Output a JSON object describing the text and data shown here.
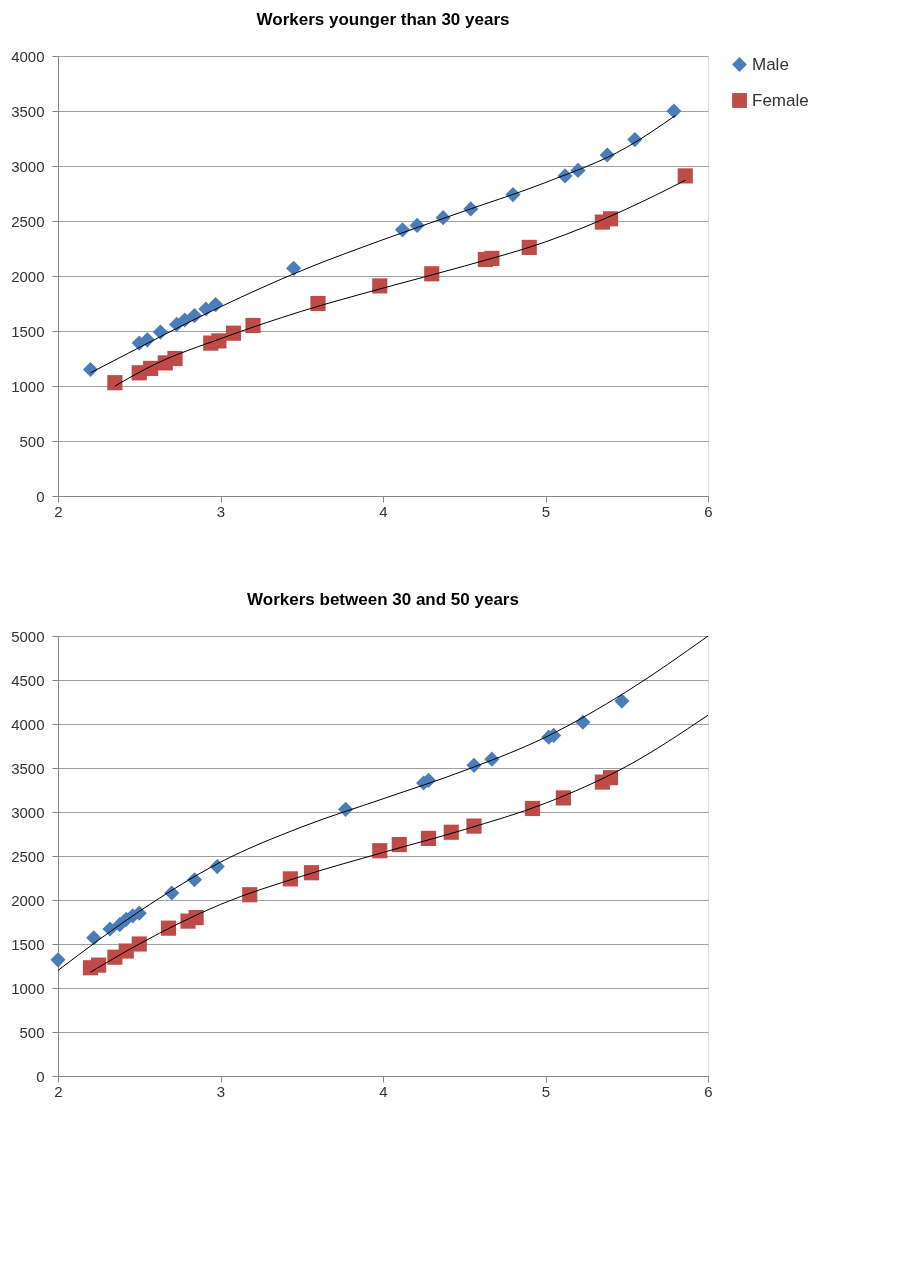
{
  "chart_data": [
    {
      "type": "scatter",
      "title": "Workers younger than 30 years",
      "xlim": [
        2,
        6
      ],
      "xticks": [
        2,
        3,
        4,
        5,
        6
      ],
      "ylim": [
        0,
        4000
      ],
      "yticks": [
        0,
        500,
        1000,
        1500,
        2000,
        2500,
        3000,
        3500,
        4000
      ],
      "grid": "y",
      "legend": "right",
      "series": [
        {
          "name": "Male",
          "type": "scatter",
          "marker": "diamond",
          "color": "#4a7ebb",
          "x": [
            2.2,
            2.5,
            2.55,
            2.63,
            2.73,
            2.78,
            2.84,
            2.91,
            2.97,
            3.45,
            4.12,
            4.21,
            4.37,
            4.54,
            4.8,
            5.12,
            5.2,
            5.38,
            5.55,
            5.79
          ],
          "values": [
            1150,
            1390,
            1420,
            1490,
            1560,
            1600,
            1640,
            1700,
            1740,
            2070,
            2420,
            2460,
            2530,
            2610,
            2740,
            2910,
            2960,
            3100,
            3240,
            3500
          ]
        },
        {
          "name": "Female",
          "type": "scatter",
          "marker": "square",
          "color": "#be4b48",
          "x": [
            2.35,
            2.5,
            2.57,
            2.66,
            2.72,
            2.94,
            2.99,
            3.08,
            3.2,
            3.6,
            3.98,
            4.3,
            4.63,
            4.67,
            4.9,
            5.35,
            5.4,
            5.86
          ],
          "values": [
            1030,
            1120,
            1160,
            1210,
            1250,
            1390,
            1410,
            1480,
            1550,
            1750,
            1910,
            2020,
            2150,
            2160,
            2260,
            2490,
            2520,
            2910
          ]
        },
        {
          "type": "line",
          "marker": "none",
          "color": "#000000",
          "x": [
            2.2,
            2.5,
            3,
            3.5,
            4,
            4.5,
            5,
            5.5,
            5.8
          ],
          "values": [
            1120,
            1350,
            1720,
            2050,
            2330,
            2590,
            2850,
            3170,
            3460
          ]
        },
        {
          "type": "line",
          "marker": "none",
          "color": "#000000",
          "x": [
            2.35,
            2.6,
            3,
            3.5,
            4,
            4.5,
            5,
            5.5,
            5.86
          ],
          "values": [
            1000,
            1200,
            1430,
            1680,
            1890,
            2090,
            2310,
            2610,
            2870
          ]
        }
      ]
    },
    {
      "type": "scatter",
      "title": "Workers between 30 and 50 years",
      "xlim": [
        2,
        6
      ],
      "xticks": [
        2,
        3,
        4,
        5,
        6
      ],
      "ylim": [
        0,
        5000
      ],
      "yticks": [
        0,
        500,
        1000,
        1500,
        2000,
        2500,
        3000,
        3500,
        4000,
        4500,
        5000
      ],
      "grid": "y",
      "legend": "right",
      "series": [
        {
          "name": "Male",
          "type": "scatter",
          "marker": "diamond",
          "color": "#4a7ebb",
          "x": [
            2.0,
            2.22,
            2.32,
            2.38,
            2.42,
            2.46,
            2.5,
            2.7,
            2.84,
            2.98,
            3.77,
            4.25,
            4.28,
            4.56,
            4.67,
            5.02,
            5.05,
            5.23,
            5.47
          ],
          "values": [
            1320,
            1570,
            1670,
            1720,
            1780,
            1820,
            1850,
            2080,
            2230,
            2380,
            3030,
            3330,
            3360,
            3530,
            3600,
            3850,
            3870,
            4020,
            4260
          ]
        },
        {
          "name": "Female",
          "type": "scatter",
          "marker": "square",
          "color": "#be4b48",
          "x": [
            2.2,
            2.25,
            2.35,
            2.42,
            2.5,
            2.68,
            2.8,
            2.85,
            3.18,
            3.43,
            3.56,
            3.98,
            4.1,
            4.28,
            4.42,
            4.56,
            4.92,
            5.11,
            5.35,
            5.4
          ],
          "values": [
            1230,
            1260,
            1350,
            1420,
            1500,
            1680,
            1760,
            1800,
            2060,
            2240,
            2310,
            2560,
            2630,
            2700,
            2770,
            2840,
            3040,
            3160,
            3340,
            3390
          ]
        },
        {
          "type": "line",
          "marker": "none",
          "color": "#000000",
          "x": [
            2,
            2.5,
            3,
            3.5,
            4,
            4.5,
            5,
            5.5,
            6
          ],
          "values": [
            1200,
            1870,
            2430,
            2830,
            3150,
            3470,
            3850,
            4370,
            5000
          ]
        },
        {
          "type": "line",
          "marker": "none",
          "color": "#000000",
          "x": [
            2.2,
            2.5,
            3,
            3.5,
            4,
            4.5,
            5,
            5.5,
            6
          ],
          "values": [
            1180,
            1500,
            1950,
            2270,
            2540,
            2800,
            3100,
            3520,
            4100
          ]
        }
      ]
    }
  ]
}
